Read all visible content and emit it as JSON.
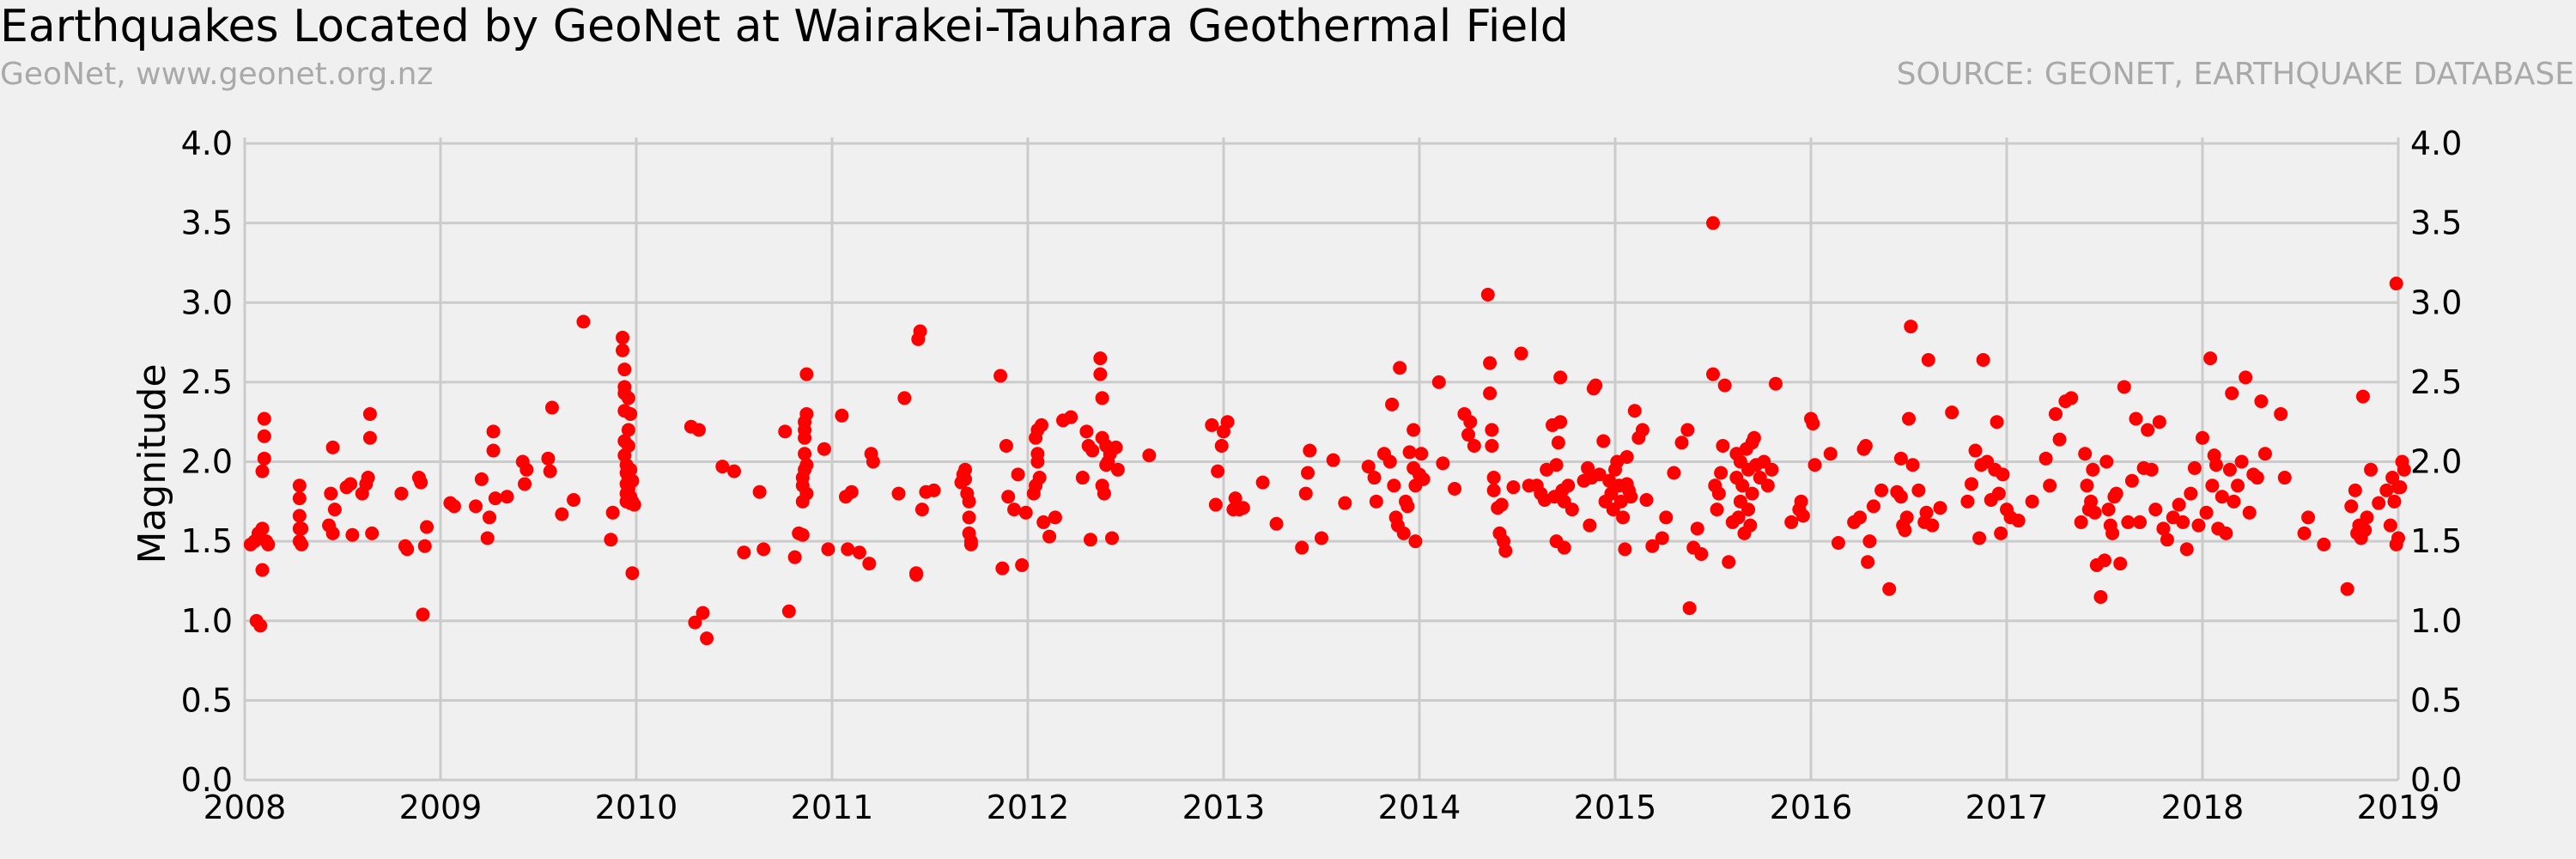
{
  "chart_data": {
    "type": "scatter",
    "title": "Earthquakes Located by GeoNet at Wairakei-Tauhara Geothermal Field",
    "subtitle_left": "GeoNet, www.geonet.org.nz",
    "subtitle_right": "SOURCE: GEONET, EARTHQUAKE DATABASE",
    "xlabel": "",
    "ylabel": "Magnitude",
    "xlim": [
      2008,
      2019
    ],
    "ylim": [
      0,
      4.2
    ],
    "x_ticks": [
      "2008",
      "2009",
      "2010",
      "2011",
      "2012",
      "2013",
      "2014",
      "2015",
      "2016",
      "2017",
      "2018",
      "2019"
    ],
    "y_ticks": [
      "0.0",
      "0.5",
      "1.0",
      "1.5",
      "2.0",
      "2.5",
      "3.0",
      "3.5",
      "4.0"
    ],
    "grid": true,
    "y_axis_labels_both_sides": true,
    "colors": {
      "marker": "#ff0000",
      "background": "#f0f0f0",
      "grid": "#cbcbcb"
    },
    "series": [
      {
        "x": [
          2008.03,
          2008.05,
          2008.06,
          2008.07,
          2008.08,
          2008.09,
          2008.09,
          2008.09,
          2008.1,
          2008.1,
          2008.1,
          2008.11,
          2008.12,
          2008.28,
          2008.28,
          2008.28,
          2008.28,
          2008.28,
          2008.29,
          2008.29,
          2008.43,
          2008.44,
          2008.45,
          2008.45,
          2008.46,
          2008.52,
          2008.54,
          2008.55,
          2008.6,
          2008.62,
          2008.63,
          2008.64,
          2008.64,
          2008.65,
          2008.8,
          2008.82,
          2008.83,
          2008.89,
          2008.9,
          2008.91,
          2008.92,
          2008.93,
          2009.05,
          2009.07,
          2009.18,
          2009.21,
          2009.24,
          2009.25,
          2009.27,
          2009.27,
          2009.28,
          2009.34,
          2009.42,
          2009.43,
          2009.44,
          2009.55,
          2009.56,
          2009.57,
          2009.62,
          2009.68,
          2009.73,
          2009.87,
          2009.88,
          2009.93,
          2009.93,
          2009.94,
          2009.94,
          2009.94,
          2009.94,
          2009.94,
          2009.94,
          2009.95,
          2009.95,
          2009.95,
          2009.95,
          2009.95,
          2009.96,
          2009.96,
          2009.96,
          2009.96,
          2009.96,
          2009.97,
          2009.97,
          2009.97,
          2009.97,
          2009.98,
          2009.98,
          2009.98,
          2009.99,
          2010.28,
          2010.3,
          2010.32,
          2010.34,
          2010.36,
          2010.44,
          2010.5,
          2010.55,
          2010.63,
          2010.65,
          2010.76,
          2010.78,
          2010.81,
          2010.83,
          2010.85,
          2010.85,
          2010.85,
          2010.85,
          2010.86,
          2010.86,
          2010.86,
          2010.86,
          2010.86,
          2010.87,
          2010.87,
          2010.87,
          2010.87,
          2010.96,
          2010.98,
          2011.05,
          2011.07,
          2011.08,
          2011.1,
          2011.14,
          2011.19,
          2011.2,
          2011.21,
          2011.34,
          2011.37,
          2011.43,
          2011.43,
          2011.44,
          2011.45,
          2011.46,
          2011.48,
          2011.52,
          2011.66,
          2011.67,
          2011.68,
          2011.68,
          2011.69,
          2011.7,
          2011.7,
          2011.7,
          2011.71,
          2011.71,
          2011.86,
          2011.87,
          2011.89,
          2011.9,
          2011.93,
          2011.95,
          2011.97,
          2011.99,
          2012.03,
          2012.04,
          2012.04,
          2012.05,
          2012.05,
          2012.05,
          2012.06,
          2012.07,
          2012.08,
          2012.11,
          2012.14,
          2012.18,
          2012.22,
          2012.28,
          2012.3,
          2012.31,
          2012.32,
          2012.33,
          2012.37,
          2012.37,
          2012.38,
          2012.38,
          2012.38,
          2012.39,
          2012.4,
          2012.4,
          2012.41,
          2012.42,
          2012.43,
          2012.45,
          2012.46,
          2012.62,
          2012.94,
          2012.96,
          2012.97,
          2012.99,
          2013.0,
          2013.02,
          2013.05,
          2013.06,
          2013.08,
          2013.1,
          2013.2,
          2013.27,
          2013.4,
          2013.42,
          2013.43,
          2013.44,
          2013.5,
          2013.56,
          2013.62,
          2013.74,
          2013.77,
          2013.78,
          2013.82,
          2013.85,
          2013.86,
          2013.87,
          2013.88,
          2013.89,
          2013.9,
          2013.92,
          2013.93,
          2013.94,
          2013.95,
          2013.97,
          2013.97,
          2013.98,
          2013.98,
          2014.0,
          2014.01,
          2014.02,
          2014.1,
          2014.12,
          2014.18,
          2014.23,
          2014.25,
          2014.26,
          2014.28,
          2014.35,
          2014.36,
          2014.36,
          2014.37,
          2014.37,
          2014.38,
          2014.38,
          2014.4,
          2014.41,
          2014.42,
          2014.43,
          2014.44,
          2014.48,
          2014.52,
          2014.56,
          2014.6,
          2014.62,
          2014.64,
          2014.65,
          2014.68,
          2014.69,
          2014.7,
          2014.7,
          2014.71,
          2014.72,
          2014.72,
          2014.73,
          2014.74,
          2014.74,
          2014.76,
          2014.78,
          2014.84,
          2014.86,
          2014.87,
          2014.88,
          2014.89,
          2014.9,
          2014.92,
          2014.94,
          2014.95,
          2014.97,
          2014.98,
          2014.99,
          2015.0,
          2015.01,
          2015.02,
          2015.03,
          2015.04,
          2015.05,
          2015.06,
          2015.06,
          2015.07,
          2015.08,
          2015.1,
          2015.12,
          2015.14,
          2015.16,
          2015.19,
          2015.24,
          2015.26,
          2015.3,
          2015.34,
          2015.37,
          2015.38,
          2015.4,
          2015.42,
          2015.44,
          2015.5,
          2015.5,
          2015.51,
          2015.52,
          2015.53,
          2015.54,
          2015.55,
          2015.56,
          2015.58,
          2015.6,
          2015.62,
          2015.62,
          2015.63,
          2015.64,
          2015.64,
          2015.65,
          2015.66,
          2015.67,
          2015.68,
          2015.68,
          2015.69,
          2015.7,
          2015.7,
          2015.71,
          2015.72,
          2015.74,
          2015.76,
          2015.78,
          2015.8,
          2015.82,
          2015.9,
          2015.94,
          2015.95,
          2015.96,
          2016.0,
          2016.01,
          2016.02,
          2016.1,
          2016.14,
          2016.22,
          2016.25,
          2016.27,
          2016.28,
          2016.29,
          2016.3,
          2016.32,
          2016.36,
          2016.4,
          2016.44,
          2016.46,
          2016.46,
          2016.47,
          2016.48,
          2016.49,
          2016.5,
          2016.51,
          2016.52,
          2016.55,
          2016.58,
          2016.59,
          2016.6,
          2016.62,
          2016.66,
          2016.72,
          2016.8,
          2016.82,
          2016.84,
          2016.86,
          2016.87,
          2016.88,
          2016.9,
          2016.92,
          2016.94,
          2016.95,
          2016.96,
          2016.97,
          2016.98,
          2017.0,
          2017.02,
          2017.06,
          2017.13,
          2017.2,
          2017.22,
          2017.25,
          2017.27,
          2017.3,
          2017.33,
          2017.38,
          2017.4,
          2017.41,
          2017.42,
          2017.43,
          2017.44,
          2017.45,
          2017.46,
          2017.48,
          2017.5,
          2017.51,
          2017.52,
          2017.53,
          2017.54,
          2017.55,
          2017.56,
          2017.58,
          2017.6,
          2017.62,
          2017.64,
          2017.66,
          2017.68,
          2017.7,
          2017.72,
          2017.74,
          2017.76,
          2017.78,
          2017.8,
          2017.82,
          2017.85,
          2017.88,
          2017.9,
          2017.92,
          2017.94,
          2017.96,
          2017.98,
          2018.0,
          2018.02,
          2018.04,
          2018.05,
          2018.06,
          2018.07,
          2018.08,
          2018.1,
          2018.12,
          2018.14,
          2018.15,
          2018.16,
          2018.18,
          2018.2,
          2018.22,
          2018.24,
          2018.26,
          2018.28,
          2018.3,
          2018.32,
          2018.4,
          2018.42,
          2018.52,
          2018.54,
          2018.62,
          2018.74,
          2018.76,
          2018.78,
          2018.79,
          2018.8,
          2018.81,
          2018.82,
          2018.83,
          2018.84,
          2018.86,
          2018.9,
          2018.94,
          2018.96,
          2018.97,
          2018.98,
          2018.99,
          2018.99,
          2019.0,
          2019.0,
          2019.01,
          2019.02,
          2019.03
        ],
        "y": [
          1.48,
          1.5,
          1.0,
          1.55,
          0.97,
          1.32,
          1.58,
          1.94,
          2.02,
          2.16,
          2.27,
          1.5,
          1.48,
          1.5,
          1.58,
          1.66,
          1.77,
          1.85,
          1.48,
          1.58,
          1.6,
          1.8,
          1.55,
          2.09,
          1.7,
          1.84,
          1.86,
          1.54,
          1.8,
          1.86,
          1.9,
          2.15,
          2.3,
          1.55,
          1.8,
          1.47,
          1.45,
          1.9,
          1.87,
          1.04,
          1.47,
          1.59,
          1.74,
          1.72,
          1.72,
          1.89,
          1.52,
          1.65,
          2.07,
          2.19,
          1.77,
          1.78,
          2.0,
          1.86,
          1.95,
          2.02,
          1.94,
          2.34,
          1.67,
          1.76,
          2.88,
          1.51,
          1.68,
          2.78,
          2.7,
          2.58,
          2.47,
          2.43,
          2.32,
          2.13,
          2.04,
          1.98,
          1.93,
          1.86,
          1.8,
          1.75,
          2.4,
          2.2,
          2.1,
          1.9,
          1.83,
          2.3,
          1.95,
          1.78,
          1.74,
          1.3,
          1.75,
          1.88,
          1.73,
          2.22,
          0.99,
          2.2,
          1.05,
          0.89,
          1.97,
          1.94,
          1.43,
          1.81,
          1.45,
          2.19,
          1.06,
          1.4,
          1.55,
          1.54,
          1.75,
          1.85,
          1.9,
          1.95,
          2.05,
          2.15,
          2.2,
          2.25,
          2.3,
          2.55,
          1.8,
          1.98,
          2.08,
          1.45,
          2.29,
          1.78,
          1.45,
          1.81,
          1.43,
          1.36,
          2.05,
          2.0,
          1.8,
          2.4,
          1.29,
          1.3,
          2.77,
          2.82,
          1.7,
          1.81,
          1.82,
          1.87,
          1.92,
          1.89,
          1.95,
          1.8,
          1.75,
          1.65,
          1.55,
          1.5,
          1.48,
          2.54,
          1.33,
          2.1,
          1.78,
          1.7,
          1.92,
          1.35,
          1.68,
          1.8,
          2.15,
          1.85,
          2.0,
          2.2,
          2.05,
          1.9,
          2.23,
          1.62,
          1.53,
          1.65,
          2.26,
          2.28,
          1.9,
          2.19,
          2.1,
          1.51,
          2.07,
          2.65,
          2.55,
          2.4,
          2.15,
          1.85,
          1.8,
          2.1,
          1.98,
          2.0,
          2.05,
          1.52,
          2.09,
          1.95,
          2.04,
          2.23,
          1.73,
          1.94,
          2.1,
          2.19,
          2.25,
          1.7,
          1.77,
          1.7,
          1.71,
          1.87,
          1.61,
          1.46,
          1.8,
          1.93,
          2.07,
          1.52,
          2.01,
          1.74,
          1.97,
          1.9,
          1.75,
          2.05,
          2.0,
          2.36,
          1.85,
          1.65,
          1.6,
          2.59,
          1.55,
          1.75,
          1.72,
          2.06,
          1.96,
          2.2,
          1.85,
          1.5,
          1.92,
          2.05,
          1.89,
          2.5,
          1.99,
          1.83,
          2.3,
          2.17,
          2.25,
          2.1,
          3.05,
          2.62,
          2.43,
          2.2,
          2.1,
          1.9,
          1.82,
          1.71,
          1.55,
          1.73,
          1.5,
          1.44,
          1.84,
          2.68,
          1.85,
          1.85,
          1.8,
          1.76,
          1.95,
          2.23,
          1.78,
          1.5,
          1.98,
          2.12,
          2.53,
          2.25,
          1.82,
          1.75,
          1.46,
          1.85,
          1.7,
          1.88,
          1.96,
          1.6,
          1.9,
          2.46,
          2.48,
          1.92,
          2.13,
          1.75,
          1.88,
          1.8,
          1.7,
          1.95,
          2.0,
          1.85,
          1.75,
          1.65,
          1.45,
          1.86,
          2.03,
          1.82,
          1.78,
          2.32,
          2.15,
          2.2,
          1.76,
          1.47,
          1.52,
          1.65,
          1.93,
          2.12,
          2.2,
          1.08,
          1.46,
          1.58,
          1.42,
          3.5,
          2.55,
          1.85,
          1.7,
          1.8,
          1.93,
          2.1,
          2.48,
          1.37,
          1.62,
          1.9,
          2.05,
          1.65,
          1.75,
          2.0,
          1.85,
          1.55,
          2.08,
          1.7,
          1.95,
          1.6,
          2.12,
          1.8,
          2.15,
          1.98,
          1.9,
          2.0,
          1.85,
          1.95,
          2.49,
          1.62,
          1.7,
          1.75,
          1.66,
          2.27,
          2.24,
          1.98,
          2.05,
          1.49,
          1.62,
          1.65,
          2.08,
          2.1,
          1.37,
          1.5,
          1.72,
          1.82,
          1.2,
          1.81,
          1.78,
          2.02,
          1.6,
          1.57,
          1.65,
          2.27,
          2.85,
          1.98,
          1.82,
          1.62,
          1.68,
          2.64,
          1.6,
          1.71,
          2.31,
          1.75,
          1.86,
          2.07,
          1.52,
          1.98,
          2.64,
          2.0,
          1.76,
          1.95,
          2.25,
          1.8,
          1.55,
          1.92,
          1.7,
          1.65,
          1.63,
          1.75,
          2.02,
          1.85,
          2.3,
          2.14,
          2.38,
          2.4,
          1.62,
          2.05,
          1.85,
          1.7,
          1.75,
          1.95,
          1.68,
          1.35,
          1.15,
          1.38,
          2.0,
          1.7,
          1.6,
          1.55,
          1.78,
          1.8,
          1.36,
          2.47,
          1.62,
          1.88,
          2.27,
          1.62,
          1.96,
          2.2,
          1.95,
          1.7,
          2.25,
          1.58,
          1.51,
          1.65,
          1.73,
          1.62,
          1.45,
          1.8,
          1.96,
          1.6,
          2.15,
          1.68,
          2.65,
          1.85,
          2.04,
          1.98,
          1.58,
          1.78,
          1.55,
          1.95,
          2.43,
          1.75,
          1.85,
          2.0,
          2.53,
          1.68,
          1.92,
          1.9,
          2.38,
          2.05,
          2.3,
          1.9,
          1.55,
          1.65,
          1.48,
          1.2,
          1.72,
          1.82,
          1.55,
          1.6,
          1.52,
          2.41,
          1.57,
          1.65,
          1.95,
          1.74,
          1.82,
          1.6,
          1.9,
          1.75,
          3.12,
          1.48,
          1.84,
          1.52,
          1.84,
          2.0,
          1.95
        ]
      }
    ]
  }
}
